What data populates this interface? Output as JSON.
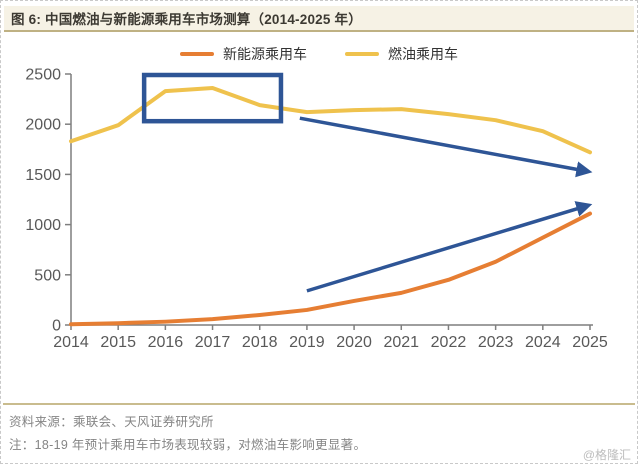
{
  "header": {
    "title": "图 6: 中国燃油与新能源乘用车市场测算（2014-2025 年）"
  },
  "legend": [
    {
      "label": "新能源乘用车",
      "color": "#e67e33"
    },
    {
      "label": "燃油乘用车",
      "color": "#efc24d"
    }
  ],
  "chart_data": {
    "type": "line",
    "title": "中国燃油与新能源乘用车市场测算（2014-2025 年）",
    "x": [
      2014,
      2015,
      2016,
      2017,
      2018,
      2019,
      2020,
      2021,
      2022,
      2023,
      2024,
      2025
    ],
    "series": [
      {
        "name": "新能源乘用车",
        "color": "#e67e33",
        "values": [
          8,
          18,
          33,
          58,
          100,
          150,
          240,
          320,
          450,
          630,
          870,
          1110
        ]
      },
      {
        "name": "燃油乘用车",
        "color": "#efc24d",
        "values": [
          1830,
          1990,
          2330,
          2360,
          2190,
          2120,
          2140,
          2150,
          2100,
          2040,
          1930,
          1720
        ]
      }
    ],
    "ylim": [
      0,
      2500
    ],
    "yticks": [
      0,
      500,
      1000,
      1500,
      2000,
      2500
    ],
    "grid": false,
    "legend_position": "top-center",
    "axis_color": "#7f7f7f",
    "tick_label_color": "#595959",
    "annotations": {
      "highlight_rect": {
        "x1": 2015.55,
        "y1": 2030,
        "x2": 2018.45,
        "y2": 2490,
        "color": "#2e5596"
      },
      "arrows": [
        {
          "name": "fuel-decline-arrow",
          "x1": 2018.85,
          "y1": 2060,
          "x2": 2024.95,
          "y2": 1530,
          "color": "#2e5596"
        },
        {
          "name": "nev-growth-arrow",
          "x1": 2019.0,
          "y1": 340,
          "x2": 2024.95,
          "y2": 1190,
          "color": "#2e5596"
        }
      ]
    }
  },
  "footer": {
    "source": "资料来源：乘联会、天风证券研究所",
    "note": "注：18-19 年预计乘用车市场表现较弱，对燃油车影响更显著。",
    "watermark": "@格隆汇"
  }
}
